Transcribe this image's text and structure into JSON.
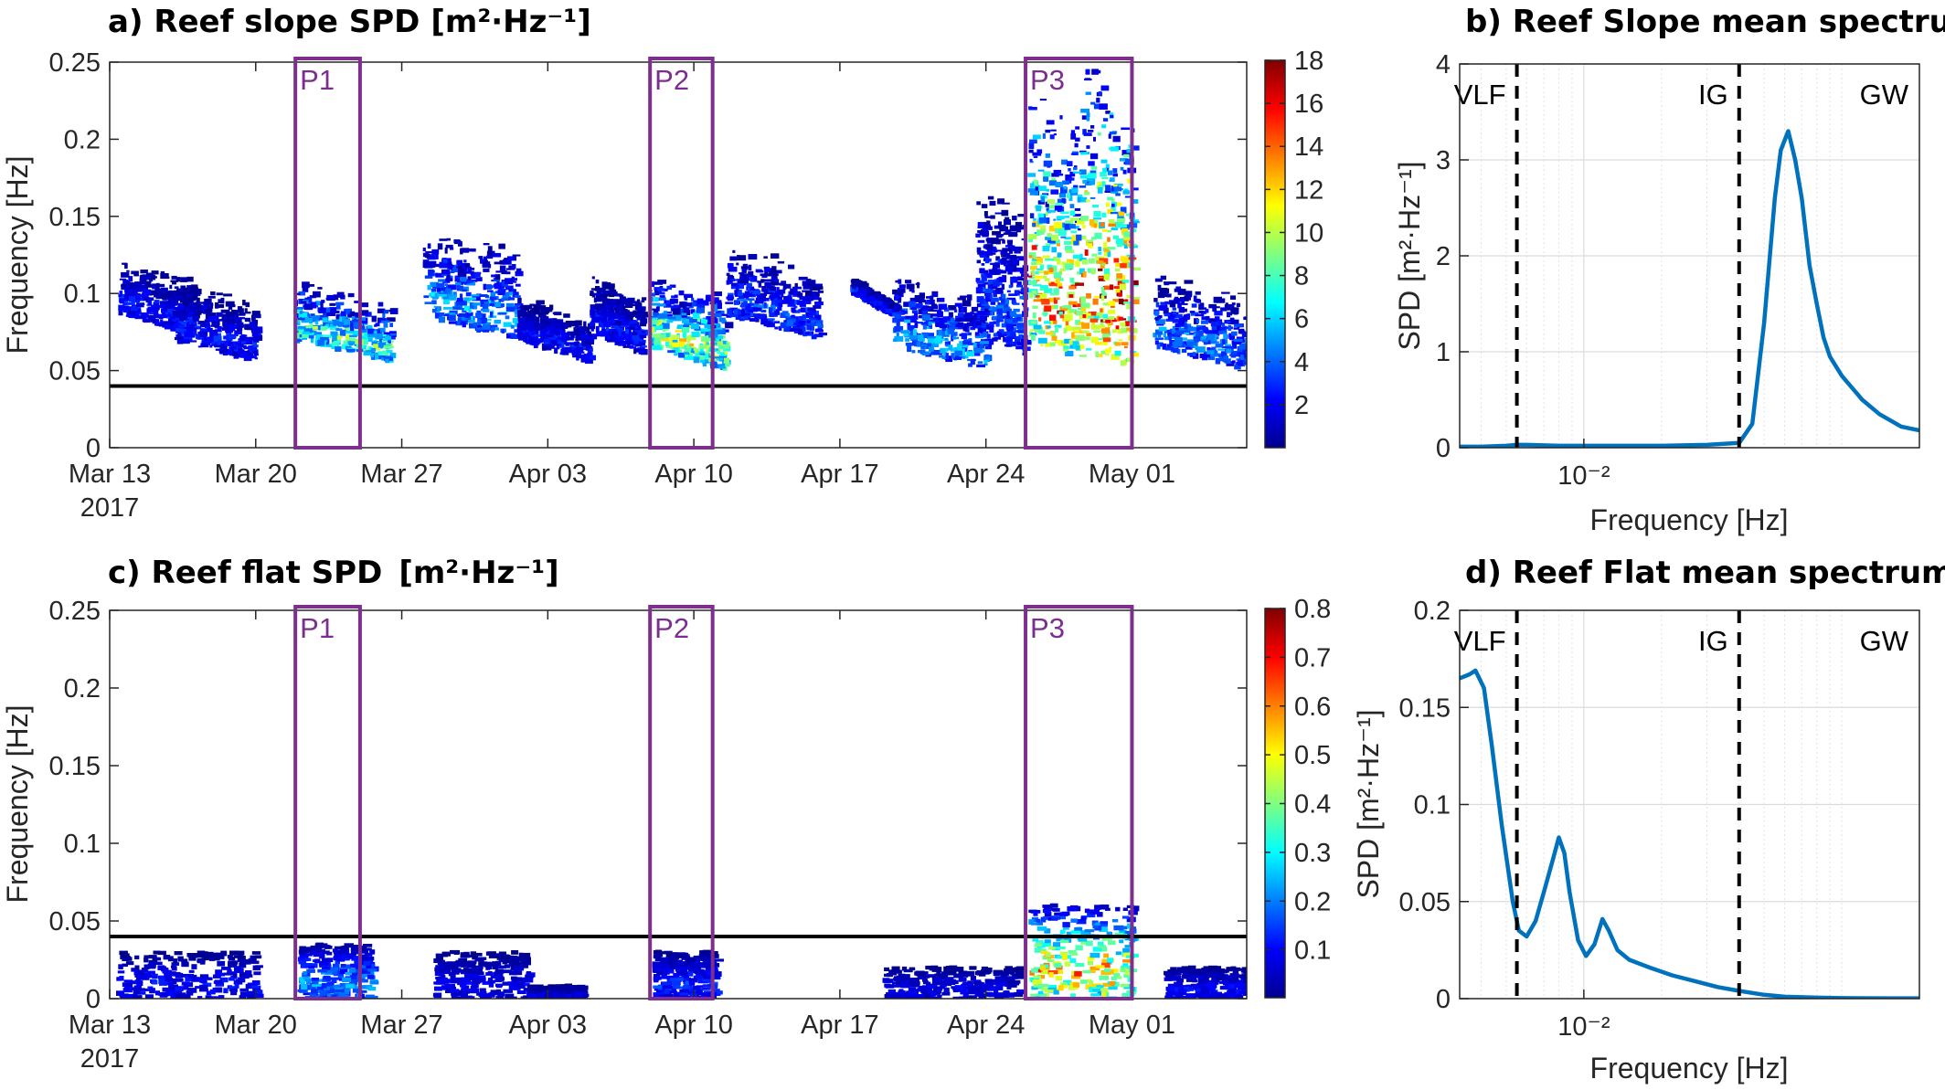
{
  "colors": {
    "period_box": "#7E2F8E",
    "line": "#0072BD",
    "threshold": "#000000"
  },
  "chart_data": [
    {
      "id": "a",
      "type": "heatmap",
      "title": "a) Reef slope SPD",
      "title_unit": "[m²·Hz⁻¹]",
      "ylabel": "Frequency [Hz]",
      "ylim": [
        0,
        0.25
      ],
      "yticks": [
        0,
        0.05,
        0.1,
        0.15,
        0.2,
        0.25
      ],
      "ytick_labels": [
        "0",
        "0.05",
        "0.1",
        "0.15",
        "0.2",
        "0.25"
      ],
      "xlim_days": [
        0,
        54.5
      ],
      "xticks_days": [
        0,
        7,
        14,
        21,
        28,
        35,
        42,
        49
      ],
      "xtick_labels": [
        "Mar 13",
        "Mar 20",
        "Mar 27",
        "Apr 03",
        "Apr 10",
        "Apr 17",
        "Apr 24",
        "May 01"
      ],
      "year_label": "2017",
      "threshold_hz": 0.04,
      "colorbar": {
        "min": 0,
        "max": 18,
        "ticks": [
          2,
          4,
          6,
          8,
          10,
          12,
          14,
          16,
          18
        ],
        "tick_labels": [
          "2",
          "4",
          "6",
          "8",
          "10",
          "12",
          "14",
          "16",
          "18"
        ]
      },
      "periods": [
        {
          "label": "P1",
          "start_day": 8.9,
          "end_day": 12.0
        },
        {
          "label": "P2",
          "start_day": 25.9,
          "end_day": 28.9
        },
        {
          "label": "P3",
          "start_day": 43.9,
          "end_day": 49.0
        }
      ],
      "events": [
        {
          "start_day": 0.4,
          "end_day": 4.0,
          "f_low": 0.072,
          "f_high": 0.11,
          "intensity": 3
        },
        {
          "start_day": 3.0,
          "end_day": 7.0,
          "f_low": 0.055,
          "f_high": 0.095,
          "intensity": 3
        },
        {
          "start_day": 8.8,
          "end_day": 13.5,
          "f_low": 0.055,
          "f_high": 0.095,
          "intensity": 9
        },
        {
          "start_day": 15.0,
          "end_day": 19.5,
          "f_low": 0.07,
          "f_high": 0.13,
          "intensity": 6
        },
        {
          "start_day": 19.5,
          "end_day": 23.0,
          "f_low": 0.055,
          "f_high": 0.085,
          "intensity": 3
        },
        {
          "start_day": 23.0,
          "end_day": 25.5,
          "f_low": 0.06,
          "f_high": 0.1,
          "intensity": 3
        },
        {
          "start_day": 25.8,
          "end_day": 29.5,
          "f_low": 0.05,
          "f_high": 0.1,
          "intensity": 11
        },
        {
          "start_day": 29.5,
          "end_day": 34.0,
          "f_low": 0.07,
          "f_high": 0.12,
          "intensity": 4
        },
        {
          "start_day": 35.5,
          "end_day": 37.5,
          "f_low": 0.085,
          "f_high": 0.095,
          "intensity": 3
        },
        {
          "start_day": 37.5,
          "end_day": 42.0,
          "f_low": 0.05,
          "f_high": 0.1,
          "intensity": 6
        },
        {
          "start_day": 41.5,
          "end_day": 43.8,
          "f_low": 0.06,
          "f_high": 0.16,
          "intensity": 4
        },
        {
          "start_day": 44.0,
          "end_day": 46.5,
          "f_low": 0.055,
          "f_high": 0.22,
          "intensity": 15
        },
        {
          "start_day": 46.5,
          "end_day": 49.0,
          "f_low": 0.05,
          "f_high": 0.25,
          "intensity": 17
        },
        {
          "start_day": 50.0,
          "end_day": 54.5,
          "f_low": 0.05,
          "f_high": 0.1,
          "intensity": 5
        }
      ]
    },
    {
      "id": "b",
      "type": "line",
      "title": "b) Reef Slope mean spectrum",
      "xlabel": "Frequency [Hz]",
      "ylabel": "SPD [m²·Hz⁻¹]",
      "xscale": "log",
      "xlim": [
        0.0033,
        0.2
      ],
      "ylim": [
        0,
        4
      ],
      "yticks": [
        0,
        1,
        2,
        3,
        4
      ],
      "ytick_labels": [
        "0",
        "1",
        "2",
        "3",
        "4"
      ],
      "xtick_value": 0.01,
      "xtick_label": "10⁻²",
      "band_lines": [
        0.0055,
        0.04
      ],
      "band_labels": [
        "VLF",
        "IG",
        "GW"
      ],
      "series": [
        {
          "name": "Reef slope mean spectrum",
          "x": [
            0.0033,
            0.004,
            0.005,
            0.0055,
            0.006,
            0.008,
            0.01,
            0.015,
            0.02,
            0.03,
            0.04,
            0.045,
            0.05,
            0.055,
            0.058,
            0.062,
            0.066,
            0.07,
            0.075,
            0.08,
            0.085,
            0.09,
            0.1,
            0.12,
            0.14,
            0.17,
            0.2
          ],
          "y": [
            0.01,
            0.01,
            0.02,
            0.03,
            0.03,
            0.02,
            0.02,
            0.02,
            0.02,
            0.03,
            0.05,
            0.25,
            1.3,
            2.6,
            3.1,
            3.3,
            3.0,
            2.6,
            1.9,
            1.5,
            1.15,
            0.95,
            0.75,
            0.5,
            0.35,
            0.22,
            0.18
          ]
        }
      ]
    },
    {
      "id": "c",
      "type": "heatmap",
      "title": "c) Reef flat SPD",
      "title_unit": "[m²·Hz⁻¹]",
      "ylabel": "Frequency [Hz]",
      "ylim": [
        0,
        0.25
      ],
      "yticks": [
        0,
        0.05,
        0.1,
        0.15,
        0.2,
        0.25
      ],
      "ytick_labels": [
        "0",
        "0.05",
        "0.1",
        "0.15",
        "0.2",
        "0.25"
      ],
      "xlim_days": [
        0,
        54.5
      ],
      "xticks_days": [
        0,
        7,
        14,
        21,
        28,
        35,
        42,
        49
      ],
      "xtick_labels": [
        "Mar 13",
        "Mar 20",
        "Mar 27",
        "Apr 03",
        "Apr 10",
        "Apr 17",
        "Apr 24",
        "May 01"
      ],
      "year_label": "2017",
      "threshold_hz": 0.04,
      "colorbar": {
        "min": 0,
        "max": 0.8,
        "ticks": [
          0.1,
          0.2,
          0.3,
          0.4,
          0.5,
          0.6,
          0.7,
          0.8
        ],
        "tick_labels": [
          "0.1",
          "0.2",
          "0.3",
          "0.4",
          "0.5",
          "0.6",
          "0.7",
          "0.8"
        ]
      },
      "periods": [
        {
          "label": "P1",
          "start_day": 8.9,
          "end_day": 12.0
        },
        {
          "label": "P2",
          "start_day": 25.9,
          "end_day": 28.9
        },
        {
          "label": "P3",
          "start_day": 43.9,
          "end_day": 49.0
        }
      ],
      "events": [
        {
          "start_day": 0.3,
          "end_day": 7.0,
          "f_low": 0.0,
          "f_high": 0.03,
          "intensity": 0.12
        },
        {
          "start_day": 9.0,
          "end_day": 12.5,
          "f_low": 0.0,
          "f_high": 0.035,
          "intensity": 0.25
        },
        {
          "start_day": 15.5,
          "end_day": 20.0,
          "f_low": 0.0,
          "f_high": 0.03,
          "intensity": 0.1
        },
        {
          "start_day": 20.0,
          "end_day": 22.5,
          "f_low": 0.0,
          "f_high": 0.008,
          "intensity": 0.08
        },
        {
          "start_day": 26.0,
          "end_day": 29.0,
          "f_low": 0.0,
          "f_high": 0.03,
          "intensity": 0.15
        },
        {
          "start_day": 37.0,
          "end_day": 43.5,
          "f_low": 0.0,
          "f_high": 0.02,
          "intensity": 0.1
        },
        {
          "start_day": 44.0,
          "end_day": 49.0,
          "f_low": 0.0,
          "f_high": 0.06,
          "intensity": 0.6
        },
        {
          "start_day": 50.5,
          "end_day": 54.5,
          "f_low": 0.0,
          "f_high": 0.02,
          "intensity": 0.12
        }
      ]
    },
    {
      "id": "d",
      "type": "line",
      "title": "d) Reef Flat mean spectrum",
      "xlabel": "Frequency [Hz]",
      "ylabel": "SPD [m²·Hz⁻¹]",
      "xscale": "log",
      "xlim": [
        0.0033,
        0.2
      ],
      "ylim": [
        0,
        0.2
      ],
      "yticks": [
        0,
        0.05,
        0.1,
        0.15,
        0.2
      ],
      "ytick_labels": [
        "0",
        "0.05",
        "0.1",
        "0.15",
        "0.2"
      ],
      "xtick_value": 0.01,
      "xtick_label": "10⁻²",
      "band_lines": [
        0.0055,
        0.04
      ],
      "band_labels": [
        "VLF",
        "IG",
        "GW"
      ],
      "series": [
        {
          "name": "Reef flat mean spectrum",
          "x": [
            0.0033,
            0.0036,
            0.0038,
            0.0041,
            0.0044,
            0.0048,
            0.0053,
            0.0056,
            0.006,
            0.0065,
            0.007,
            0.0076,
            0.008,
            0.0084,
            0.0088,
            0.0095,
            0.0102,
            0.011,
            0.0118,
            0.0125,
            0.0135,
            0.015,
            0.018,
            0.022,
            0.027,
            0.033,
            0.04,
            0.05,
            0.06,
            0.08,
            0.1,
            0.15,
            0.2
          ],
          "y": [
            0.165,
            0.167,
            0.169,
            0.16,
            0.13,
            0.09,
            0.05,
            0.035,
            0.032,
            0.04,
            0.055,
            0.072,
            0.083,
            0.075,
            0.055,
            0.03,
            0.022,
            0.028,
            0.041,
            0.035,
            0.025,
            0.02,
            0.016,
            0.012,
            0.009,
            0.006,
            0.004,
            0.002,
            0.001,
            0.0005,
            0.0003,
            0.0002,
            0.0002
          ]
        }
      ]
    }
  ]
}
